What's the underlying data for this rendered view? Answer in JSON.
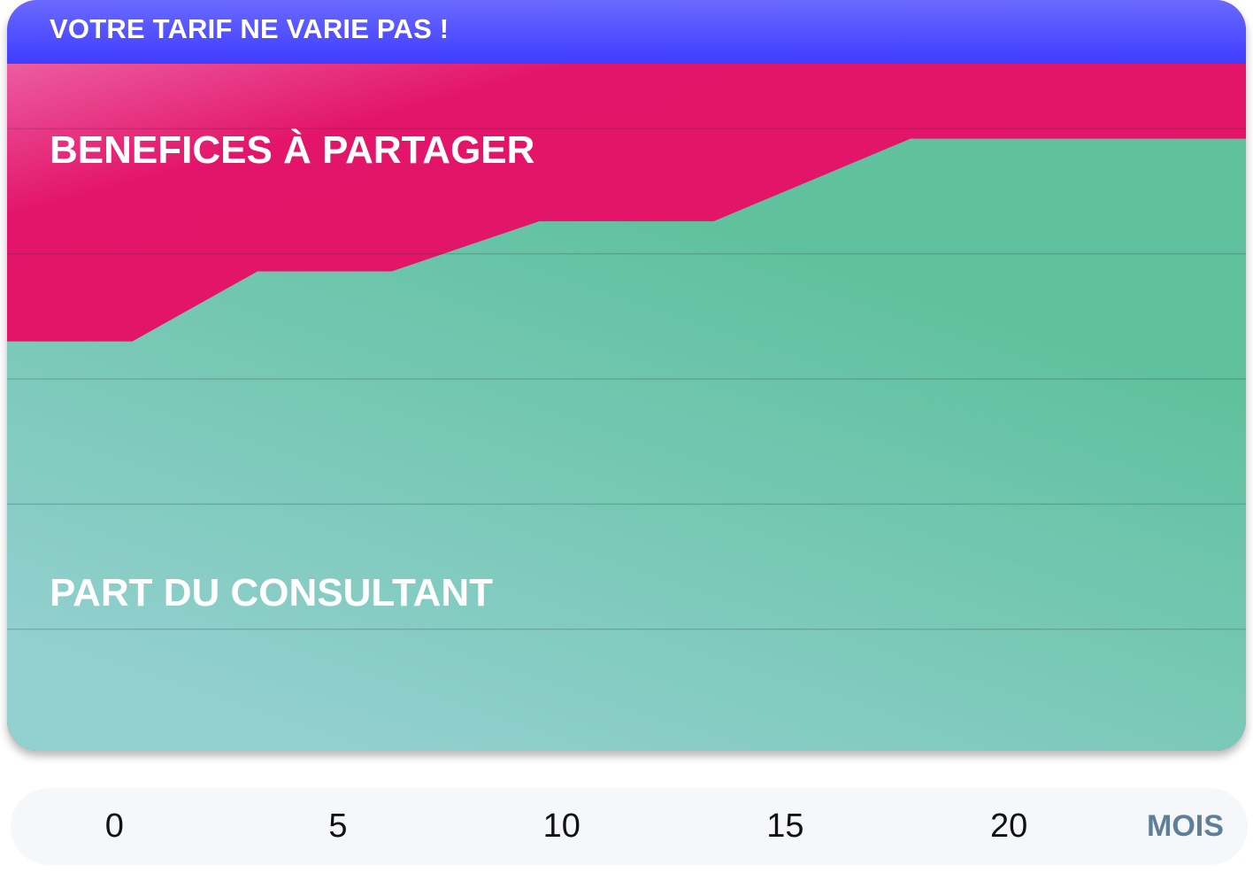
{
  "banner": {
    "text": "VOTRE TARIF NE VARIE PAS !"
  },
  "labels": {
    "profit_area": "BENEFICES À PARTAGER",
    "consultant_area": "PART DU CONSULTANT"
  },
  "colors": {
    "banner": "#4a47ff",
    "profit_area": "#e0155f",
    "consultant_area": "#60c19e",
    "consultant_area_bottom": "#93d0d0",
    "axis_unit": "#5f7f98"
  },
  "chart_data": {
    "type": "area",
    "xlabel": "MOIS",
    "ylabel": "",
    "xlim": [
      -2.4,
      25.3
    ],
    "ylim": [
      0,
      6
    ],
    "grid": true,
    "x_ticks": [
      0,
      5,
      10,
      15,
      20
    ],
    "series": [
      {
        "name": "PART DU CONSULTANT",
        "x": [
          -2.4,
          0.4,
          3.2,
          6.2,
          9.5,
          13.4,
          17.8,
          25.3
        ],
        "values": [
          3.3,
          3.3,
          3.86,
          3.86,
          4.26,
          4.26,
          4.92,
          4.92
        ]
      },
      {
        "name": "BENEFICES À PARTAGER",
        "x": [
          -2.4,
          25.3
        ],
        "values": [
          6,
          6
        ]
      }
    ]
  }
}
